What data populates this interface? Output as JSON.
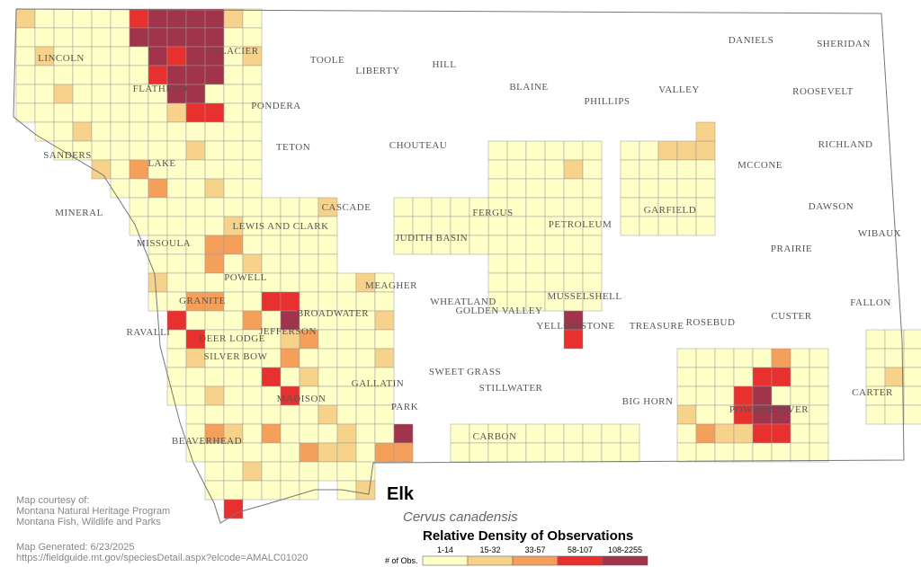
{
  "map": {
    "title": "Elk",
    "subtitle": "Cervus canadensis",
    "counties": [
      "GLACIER",
      "TOOLE",
      "LIBERTY",
      "HILL",
      "BLAINE",
      "PHILLIPS",
      "VALLEY",
      "DANIELS",
      "SHERIDAN",
      "ROOSEVELT",
      "LINCOLN",
      "FLATHEAD",
      "PONDERA",
      "TETON",
      "CHOUTEAU",
      "RICHLAND",
      "MCCONE",
      "SANDERS",
      "LAKE",
      "CASCADE",
      "FERGUS",
      "PETROLEUM",
      "GARFIELD",
      "DAWSON",
      "WIBAUX",
      "MINERAL",
      "MISSOULA",
      "LEWIS AND CLARK",
      "JUDITH BASIN",
      "PRAIRIE",
      "POWELL",
      "MEAGHER",
      "WHEATLAND",
      "MUSSELSHELL",
      "GOLDEN VALLEY",
      "GRANITE",
      "BROADWATER",
      "RAVALLI",
      "DEER LODGE",
      "JEFFERSON",
      "SILVER BOW",
      "YELLOWSTONE",
      "TREASURE",
      "ROSEBUD",
      "CUSTER",
      "FALLON",
      "SWEET GRASS",
      "STILLWATER",
      "BIG HORN",
      "POWDER RIVER",
      "CARTER",
      "GALLATIN",
      "PARK",
      "CARBON",
      "BEAVERHEAD",
      "MADISON"
    ],
    "legend": {
      "title": "Relative Density of Observations",
      "axis_label": "# of Obs.",
      "items": [
        {
          "label": "1-14",
          "color": "#ffffc8"
        },
        {
          "label": "15-32",
          "color": "#f7d28a"
        },
        {
          "label": "33-57",
          "color": "#f4a05a"
        },
        {
          "label": "58-107",
          "color": "#e8302e"
        },
        {
          "label": "108-2255",
          "color": "#a0344a"
        }
      ]
    },
    "credits": [
      "Map courtesy of:",
      "Montana Natural Heritage Program",
      "Montana Fish, Wildlife and Parks"
    ],
    "generated": "Map Generated: 6/23/2025",
    "url": "https://fieldguide.mt.gov/speciesDetail.aspx?elcode=AMALC01020"
  }
}
